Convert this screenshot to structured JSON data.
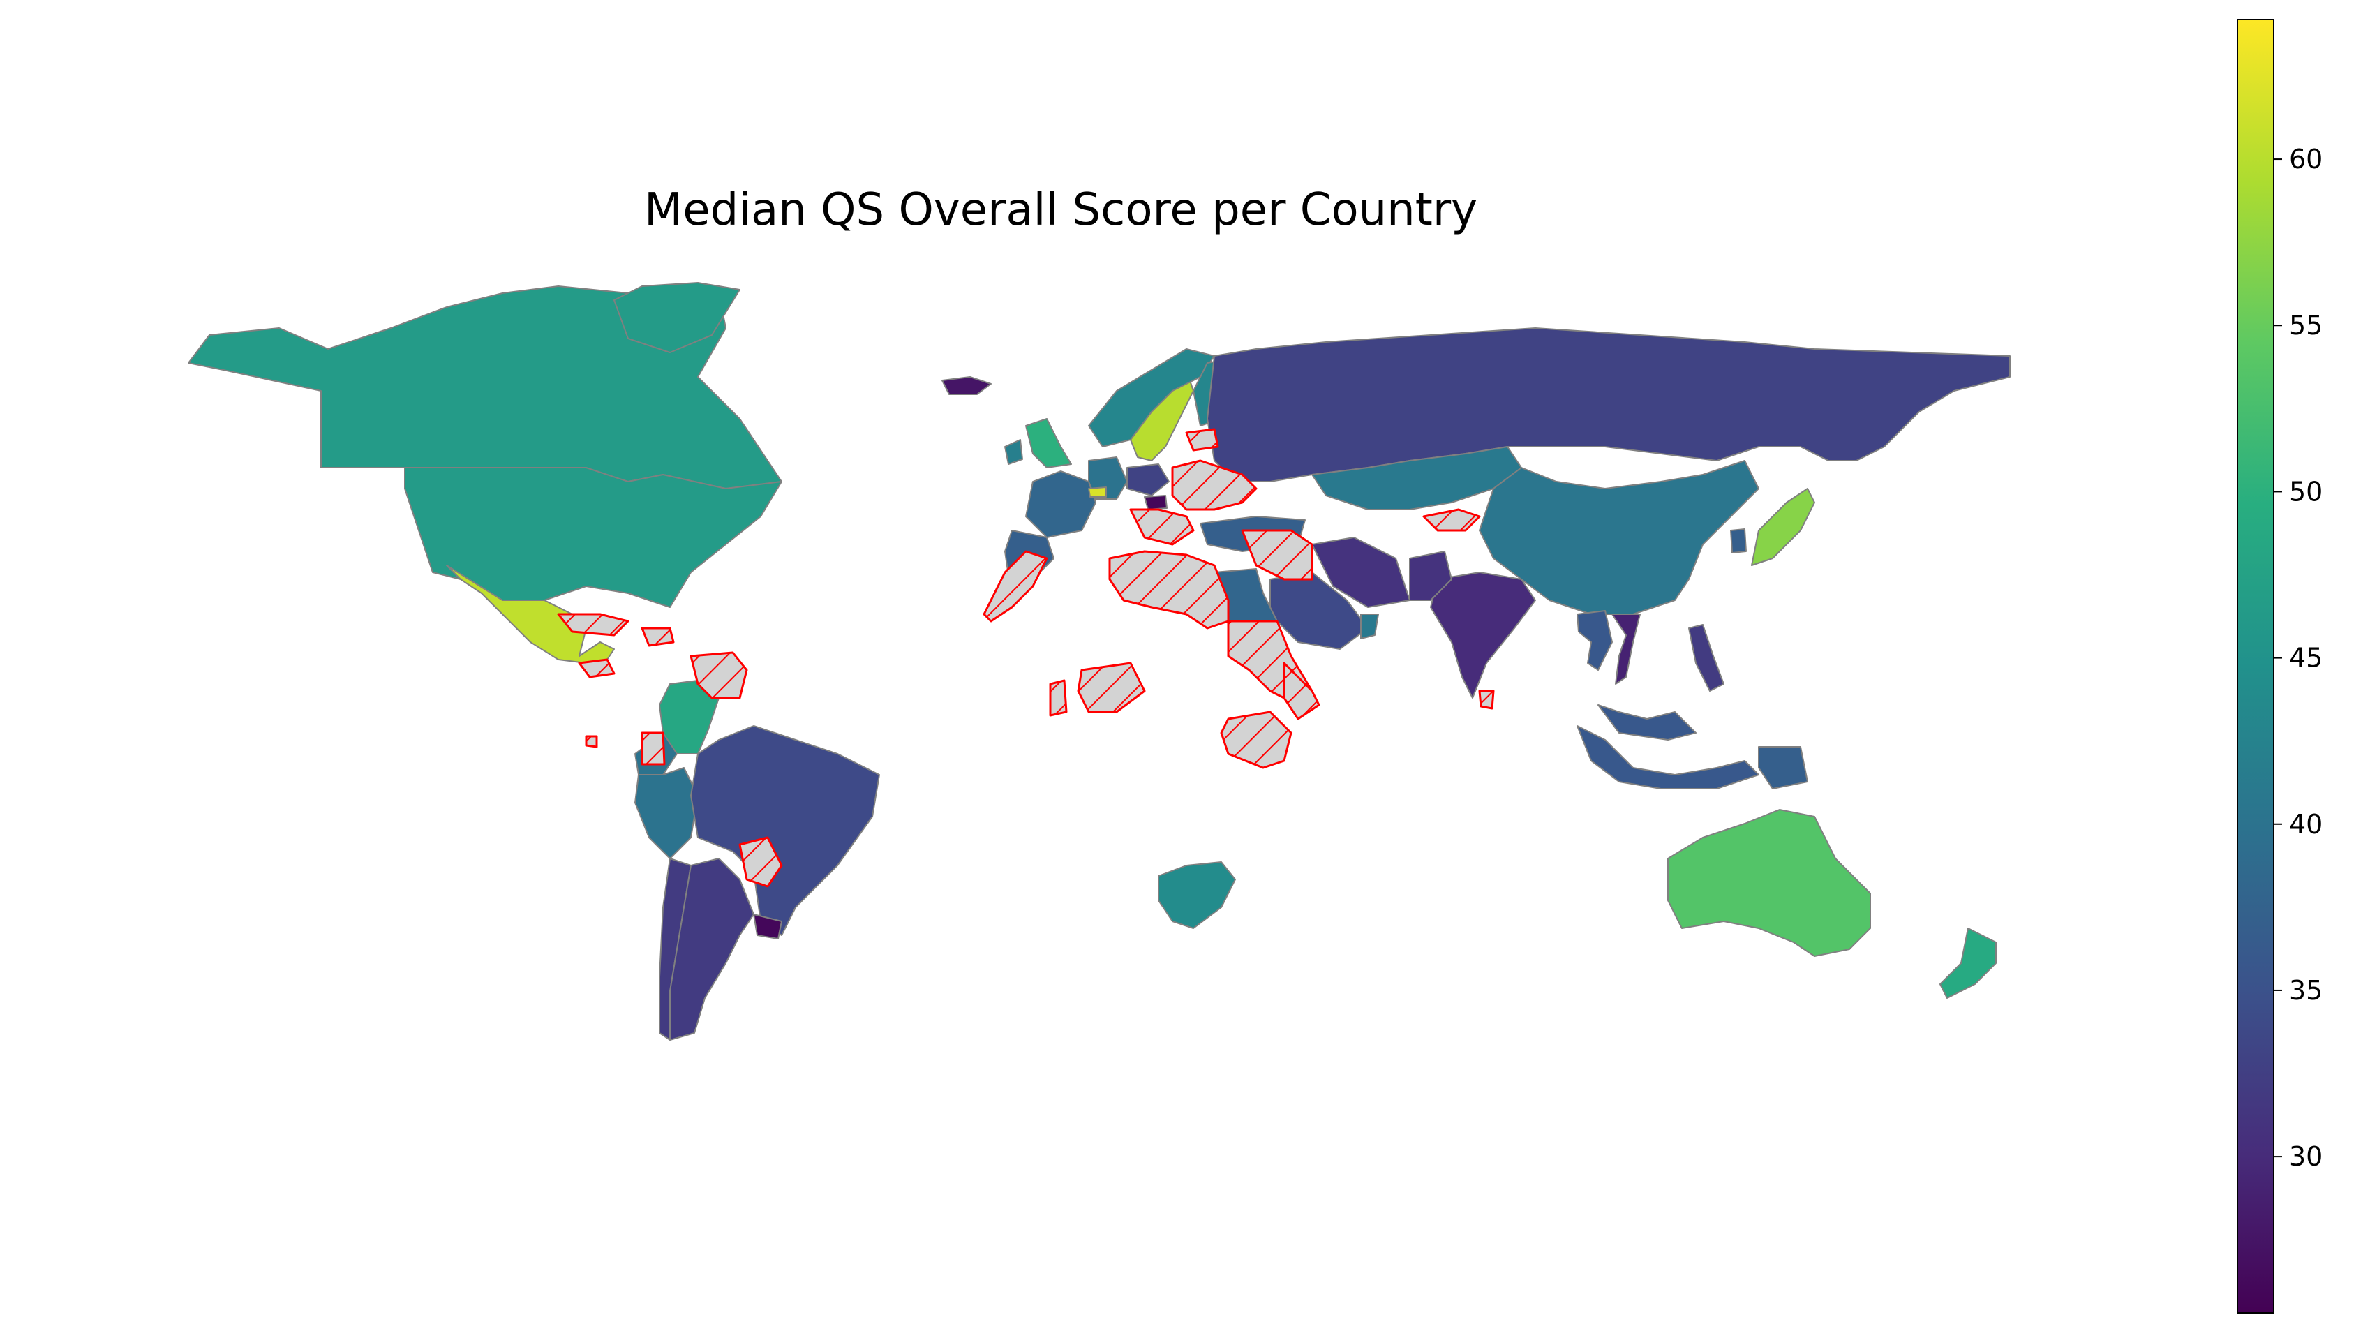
{
  "title": "Median QS Overall Score per Country",
  "colorbar": {
    "colormap": "viridis",
    "min": 25.3,
    "max": 64.2,
    "ticks": [
      30,
      35,
      40,
      45,
      50,
      55,
      60
    ]
  },
  "missing_data_style": {
    "fill": "#d3d3d3",
    "edge": "#ff0000",
    "hatch": "diagonal"
  },
  "border_color": "#808080",
  "countries": [
    {
      "name": "Canada",
      "value": 46.5
    },
    {
      "name": "United States",
      "value": 46.5
    },
    {
      "name": "Mexico",
      "value": 60.5
    },
    {
      "name": "Colombia",
      "value": 48.5
    },
    {
      "name": "Peru",
      "value": 40.0
    },
    {
      "name": "Ecuador",
      "value": 40.0
    },
    {
      "name": "Brazil",
      "value": 34.0
    },
    {
      "name": "Chile",
      "value": 32.0
    },
    {
      "name": "Argentina",
      "value": 32.0
    },
    {
      "name": "Uruguay",
      "value": 26.0
    },
    {
      "name": "Iceland",
      "value": 27.5
    },
    {
      "name": "Greenland",
      "value": 46.5
    },
    {
      "name": "United Kingdom",
      "value": 50.0
    },
    {
      "name": "Ireland",
      "value": 42.0
    },
    {
      "name": "Sweden",
      "value": 60.0
    },
    {
      "name": "Norway",
      "value": 43.0
    },
    {
      "name": "Finland",
      "value": 43.0
    },
    {
      "name": "France",
      "value": 38.0
    },
    {
      "name": "Spain",
      "value": 37.0
    },
    {
      "name": "Germany",
      "value": 40.0
    },
    {
      "name": "Switzerland",
      "value": 62.0
    },
    {
      "name": "Poland",
      "value": 33.0
    },
    {
      "name": "Hungary",
      "value": 26.0
    },
    {
      "name": "Russia",
      "value": 33.0
    },
    {
      "name": "Kazakhstan",
      "value": 41.0
    },
    {
      "name": "China",
      "value": 40.5
    },
    {
      "name": "Japan",
      "value": 57.0
    },
    {
      "name": "South Korea",
      "value": 37.0
    },
    {
      "name": "India",
      "value": 30.0
    },
    {
      "name": "Pakistan",
      "value": 31.0
    },
    {
      "name": "Iran",
      "value": 31.0
    },
    {
      "name": "Saudi Arabia",
      "value": 34.0
    },
    {
      "name": "Oman",
      "value": 41.0
    },
    {
      "name": "Egypt",
      "value": 38.0
    },
    {
      "name": "Turkey",
      "value": 37.0
    },
    {
      "name": "Thailand",
      "value": 36.0
    },
    {
      "name": "Vietnam",
      "value": 29.0
    },
    {
      "name": "Philippines",
      "value": 32.0
    },
    {
      "name": "Malaysia",
      "value": 36.0
    },
    {
      "name": "Indonesia",
      "value": 36.0
    },
    {
      "name": "Papua New Guinea",
      "value": 37.0
    },
    {
      "name": "South Africa",
      "value": 44.0
    },
    {
      "name": "Australia",
      "value": 53.5
    },
    {
      "name": "New Zealand",
      "value": 49.0
    }
  ]
}
